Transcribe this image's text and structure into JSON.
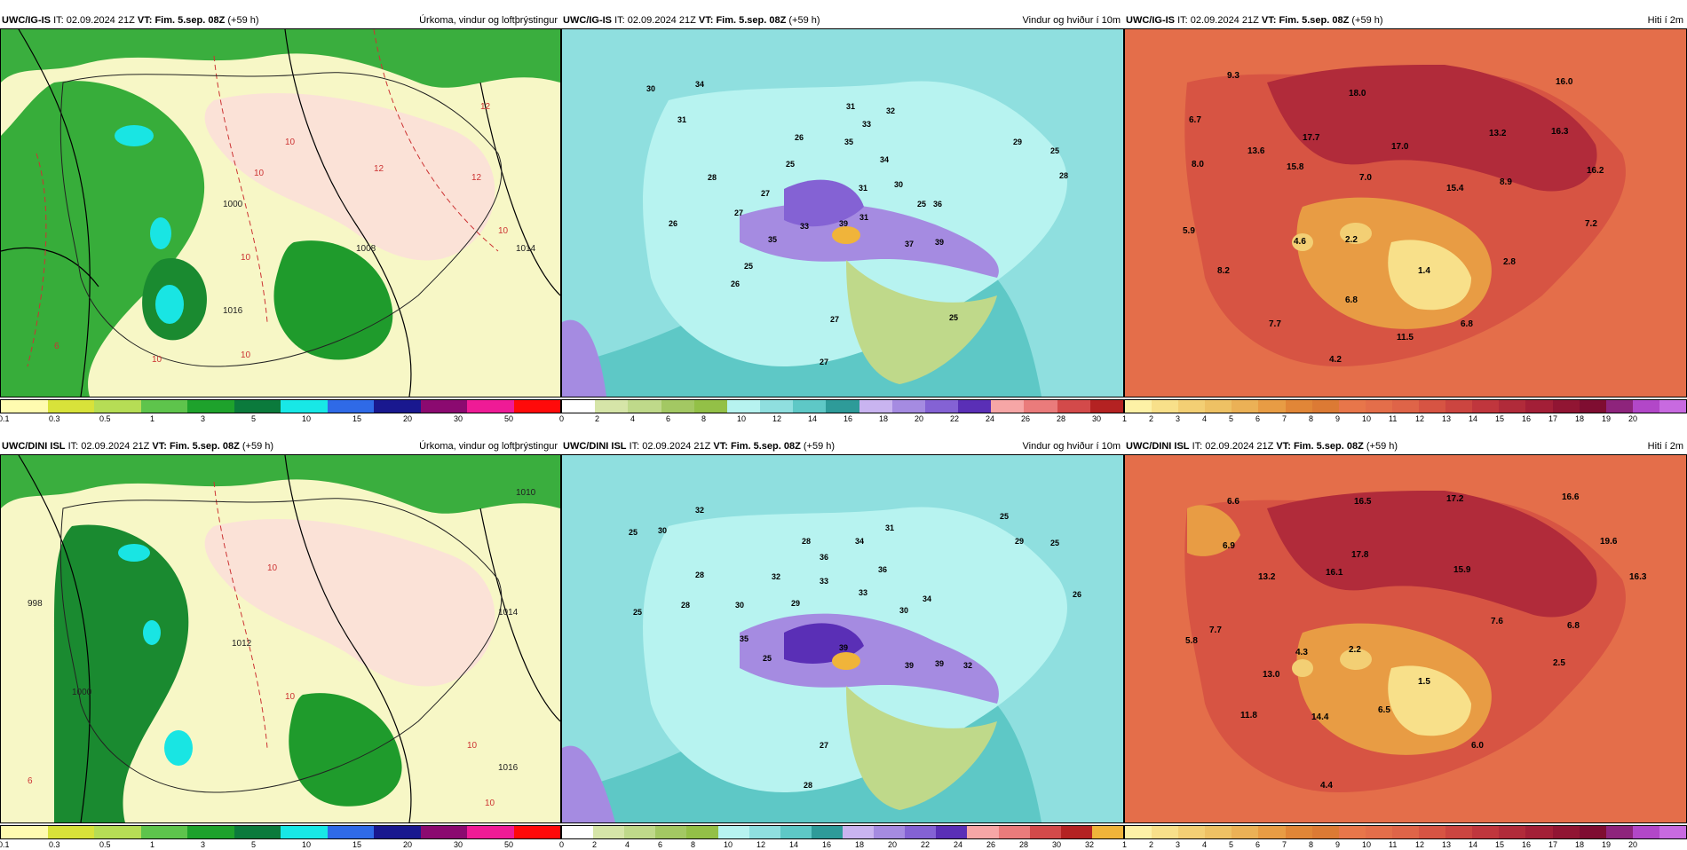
{
  "rows": [
    {
      "model": "UWC/IG-IS",
      "panels": [
        {
          "it_label": "IT:",
          "it_value": "02.09.2024 21Z",
          "vt_label": "VT:",
          "vt_value": "Fim. 5.sep. 08Z",
          "lead": "(+59 h)",
          "title": "Úrkoma, vindur og loftþrýstingur",
          "colorbar": [
            "0.1",
            "0.3",
            "0.5",
            "1",
            "3",
            "5",
            "10",
            "15",
            "20",
            "30",
            "50"
          ],
          "colors": [
            "#fffbb0",
            "#d8e23a",
            "#b6dd55",
            "#5ec44c",
            "#1ea22c",
            "#0b7a3c",
            "#18e8e6",
            "#2f6ae7",
            "#19188f",
            "#8b0a70",
            "#ef1b96",
            "#ff0a0a"
          ],
          "labels": [
            "12",
            "10",
            "10",
            "12",
            "12",
            "10",
            "10",
            "6",
            "10",
            "10",
            "1000",
            "1008",
            "1014",
            "1016"
          ]
        },
        {
          "it_label": "IT:",
          "it_value": "02.09.2024 21Z",
          "vt_label": "VT:",
          "vt_value": "Fim. 5.sep. 08Z",
          "lead": "(+59 h)",
          "title": "Vindur og hviður í 10m",
          "colorbar": [
            "0",
            "2",
            "4",
            "6",
            "8",
            "10",
            "12",
            "14",
            "16",
            "18",
            "20",
            "22",
            "24",
            "26",
            "28",
            "30"
          ],
          "colors": [
            "#ffffff",
            "#d6e5a8",
            "#bfd98a",
            "#a3c863",
            "#93c047",
            "#b7f3f0",
            "#8fdfdf",
            "#5ec8c6",
            "#2e9b99",
            "#c9b4f0",
            "#a58be1",
            "#8462d4",
            "#5a2fb6",
            "#f6a6a6",
            "#ea7b7b",
            "#d34a4a",
            "#b42222"
          ],
          "labels": [
            "30",
            "34",
            "31",
            "31",
            "33",
            "32",
            "26",
            "35",
            "25",
            "34",
            "28",
            "27",
            "31",
            "30",
            "27",
            "39",
            "37",
            "25",
            "35",
            "36",
            "33",
            "26",
            "39",
            "25",
            "26",
            "27",
            "27",
            "25",
            "29",
            "28",
            "25",
            "31"
          ]
        },
        {
          "it_label": "IT:",
          "it_value": "02.09.2024 21Z",
          "vt_label": "VT:",
          "vt_value": "Fim. 5.sep. 08Z",
          "lead": "(+59 h)",
          "title": "Hiti í 2m",
          "colorbar": [
            "1",
            "2",
            "3",
            "4",
            "5",
            "6",
            "7",
            "8",
            "9",
            "10",
            "11",
            "12",
            "13",
            "14",
            "15",
            "16",
            "17",
            "18",
            "19",
            "20"
          ],
          "colors": [
            "#fdf1a6",
            "#f8e08a",
            "#f3cf74",
            "#eec164",
            "#ebb156",
            "#e89c44",
            "#e18637",
            "#dc7a34",
            "#e8764a",
            "#e46e4a",
            "#df6448",
            "#d75443",
            "#cc4540",
            "#c0363d",
            "#b12b3a",
            "#a31f37",
            "#911533",
            "#7f0d31",
            "#8e247c",
            "#b247c8",
            "#c86ae0"
          ],
          "labels": [
            "9.3",
            "18.0",
            "16.0",
            "6.7",
            "17.7",
            "13.2",
            "13.6",
            "17.0",
            "16.3",
            "8.0",
            "15.8",
            "7.0",
            "15.4",
            "8.9",
            "16.2",
            "5.9",
            "4.6",
            "2.2",
            "7.2",
            "1.4",
            "2.8",
            "8.2",
            "6.8",
            "7.7",
            "11.5",
            "6.8",
            "4.2"
          ]
        }
      ]
    },
    {
      "model": "UWC/DINI ISL",
      "panels": [
        {
          "it_label": "IT:",
          "it_value": "02.09.2024 21Z",
          "vt_label": "VT:",
          "vt_value": "Fim. 5.sep. 08Z",
          "lead": "(+59 h)",
          "title": "Úrkoma, vindur og loftþrýstingur",
          "colorbar": [
            "0.1",
            "0.3",
            "0.5",
            "1",
            "3",
            "5",
            "10",
            "15",
            "20",
            "30",
            "50"
          ],
          "colors": [
            "#fffbb0",
            "#d8e23a",
            "#b6dd55",
            "#5ec44c",
            "#1ea22c",
            "#0b7a3c",
            "#18e8e6",
            "#2f6ae7",
            "#19188f",
            "#8b0a70",
            "#ef1b96",
            "#ff0a0a"
          ],
          "labels": [
            "1010",
            "998",
            "1000",
            "1012",
            "1014",
            "1016",
            "10",
            "10",
            "10",
            "6",
            "10"
          ]
        },
        {
          "it_label": "IT:",
          "it_value": "02.09.2024 21Z",
          "vt_label": "VT:",
          "vt_value": "Fim. 5.sep. 08Z",
          "lead": "(+59 h)",
          "title": "Vindur og hviður í 10m",
          "colorbar": [
            "0",
            "2",
            "4",
            "6",
            "8",
            "10",
            "12",
            "14",
            "16",
            "18",
            "20",
            "22",
            "24",
            "26",
            "28",
            "30",
            "32"
          ],
          "colors": [
            "#ffffff",
            "#d6e5a8",
            "#bfd98a",
            "#a3c863",
            "#93c047",
            "#b7f3f0",
            "#8fdfdf",
            "#5ec8c6",
            "#2e9b99",
            "#c9b4f0",
            "#a58be1",
            "#8462d4",
            "#5a2fb6",
            "#f6a6a6",
            "#ea7b7b",
            "#d34a4a",
            "#b42222",
            "#f0b43a"
          ],
          "labels": [
            "32",
            "25",
            "30",
            "28",
            "34",
            "31",
            "25",
            "36",
            "29",
            "28",
            "32",
            "33",
            "36",
            "33",
            "30",
            "25",
            "28",
            "29",
            "30",
            "34",
            "35",
            "39",
            "25",
            "39",
            "39",
            "32",
            "25",
            "27",
            "28",
            "26"
          ]
        },
        {
          "it_label": "IT:",
          "it_value": "02.09.2024 21Z",
          "vt_label": "VT:",
          "vt_value": "Fim. 5.sep. 08Z",
          "lead": "(+59 h)",
          "title": "Hiti í 2m",
          "colorbar": [
            "1",
            "2",
            "3",
            "4",
            "5",
            "6",
            "7",
            "8",
            "9",
            "10",
            "11",
            "12",
            "13",
            "14",
            "15",
            "16",
            "17",
            "18",
            "19",
            "20"
          ],
          "colors": [
            "#fdf1a6",
            "#f8e08a",
            "#f3cf74",
            "#eec164",
            "#ebb156",
            "#e89c44",
            "#e18637",
            "#dc7a34",
            "#e8764a",
            "#e46e4a",
            "#df6448",
            "#d75443",
            "#cc4540",
            "#c0363d",
            "#b12b3a",
            "#a31f37",
            "#911533",
            "#7f0d31",
            "#8e247c",
            "#b247c8",
            "#c86ae0"
          ],
          "labels": [
            "6.6",
            "16.5",
            "17.2",
            "16.6",
            "6.9",
            "17.8",
            "19.6",
            "13.2",
            "16.1",
            "15.9",
            "16.3",
            "7.7",
            "7.6",
            "6.8",
            "5.8",
            "4.3",
            "2.2",
            "2.5",
            "13.0",
            "1.5",
            "11.8",
            "14.4",
            "6.5",
            "6.0",
            "4.4"
          ]
        }
      ]
    }
  ]
}
